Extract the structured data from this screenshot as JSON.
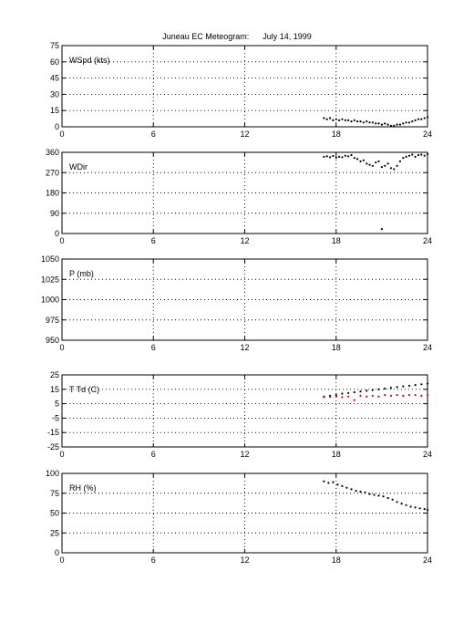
{
  "title": "Juneau EC Meteogram:      July 14, 1999",
  "chart_data": [
    {
      "type": "scatter",
      "ylabel": "WSpd (kts)",
      "xlim": [
        0,
        24
      ],
      "ylim": [
        0,
        75
      ],
      "xticks": [
        0,
        6,
        12,
        18,
        24
      ],
      "yticks": [
        0,
        15,
        30,
        45,
        60,
        75
      ],
      "series": [
        {
          "color": "#000000",
          "x": [
            17.2,
            17.4,
            17.6,
            17.8,
            18.0,
            18.2,
            18.4,
            18.6,
            18.8,
            19.0,
            19.2,
            19.4,
            19.6,
            19.8,
            20.0,
            20.2,
            20.4,
            20.6,
            20.8,
            21.0,
            21.2,
            21.4,
            21.6,
            21.8,
            22.0,
            22.2,
            22.4,
            22.6,
            22.8,
            23.0,
            23.2,
            23.4,
            23.6,
            23.8,
            24.0
          ],
          "y": [
            8,
            7,
            8,
            6,
            7,
            6,
            7,
            6,
            6,
            5,
            6,
            5,
            5,
            4,
            5,
            4,
            4,
            3,
            3,
            2,
            3,
            2,
            1,
            1,
            2,
            2,
            3,
            4,
            4,
            5,
            6,
            7,
            7,
            8,
            9
          ]
        }
      ]
    },
    {
      "type": "scatter",
      "ylabel": "WDir",
      "xlim": [
        0,
        24
      ],
      "ylim": [
        0,
        360
      ],
      "xticks": [
        0,
        6,
        12,
        18,
        24
      ],
      "yticks": [
        0,
        90,
        180,
        270,
        360
      ],
      "series": [
        {
          "color": "#000000",
          "x": [
            17.2,
            17.4,
            17.6,
            17.8,
            18.0,
            18.2,
            18.4,
            18.6,
            18.8,
            19.0,
            19.2,
            19.4,
            19.6,
            19.8,
            20.0,
            20.2,
            20.4,
            20.6,
            20.8,
            21.0,
            21.2,
            21.4,
            21.6,
            21.8,
            22.0,
            22.2,
            22.4,
            22.6,
            22.8,
            23.0,
            23.2,
            23.4,
            23.6,
            23.8,
            24.0,
            21.0
          ],
          "y": [
            340,
            342,
            338,
            344,
            336,
            340,
            338,
            345,
            342,
            348,
            335,
            330,
            320,
            325,
            310,
            305,
            300,
            315,
            320,
            295,
            300,
            310,
            290,
            285,
            300,
            320,
            335,
            340,
            345,
            350,
            340,
            348,
            350,
            345,
            352,
            20
          ]
        }
      ]
    },
    {
      "type": "scatter",
      "ylabel": "P (mb)",
      "xlim": [
        0,
        24
      ],
      "ylim": [
        950,
        1050
      ],
      "xticks": [
        0,
        6,
        12,
        18,
        24
      ],
      "yticks": [
        950,
        975,
        1000,
        1025,
        1050
      ],
      "series": []
    },
    {
      "type": "scatter",
      "ylabel": "T Td (C)",
      "xlim": [
        0,
        24
      ],
      "ylim": [
        -25,
        25
      ],
      "xticks": [
        0,
        6,
        12,
        18,
        24
      ],
      "yticks": [
        -25,
        -15,
        -5,
        5,
        15,
        25
      ],
      "series": [
        {
          "color": "#000000",
          "x": [
            17.2,
            17.6,
            18.0,
            18.4,
            18.8,
            19.2,
            19.6,
            20.0,
            20.4,
            20.8,
            21.2,
            21.6,
            22.0,
            22.4,
            22.8,
            23.2,
            23.6,
            24.0
          ],
          "y": [
            10,
            10.5,
            11,
            12,
            12.5,
            13,
            13.5,
            14,
            14.5,
            15,
            15.5,
            16,
            16.5,
            17,
            17.5,
            18,
            18.5,
            19
          ]
        },
        {
          "color": "#dd0000",
          "x": [
            17.2,
            17.6,
            18.0,
            18.4,
            18.8,
            19.2,
            19.6,
            20.0,
            20.4,
            20.8,
            21.2,
            21.6,
            22.0,
            22.4,
            22.8,
            23.2,
            23.6,
            24.0
          ],
          "y": [
            9.5,
            9.8,
            10,
            9.5,
            10,
            7.5,
            10.5,
            10,
            10.5,
            10,
            11,
            10.5,
            11,
            10.5,
            11,
            11,
            10.5,
            11
          ]
        }
      ]
    },
    {
      "type": "scatter",
      "ylabel": "RH (%)",
      "xlim": [
        0,
        24
      ],
      "ylim": [
        0,
        100
      ],
      "xticks": [
        0,
        6,
        12,
        18,
        24
      ],
      "yticks": [
        0,
        25,
        50,
        75,
        100
      ],
      "series": [
        {
          "color": "#000000",
          "x": [
            17.2,
            17.5,
            17.8,
            18.1,
            18.4,
            18.7,
            19.0,
            19.3,
            19.6,
            19.9,
            20.2,
            20.5,
            20.8,
            21.1,
            21.4,
            21.7,
            22.0,
            22.3,
            22.6,
            22.9,
            23.2,
            23.5,
            23.8,
            24.0
          ],
          "y": [
            90,
            88,
            89,
            86,
            84,
            82,
            80,
            78,
            77,
            76,
            74,
            73,
            72,
            71,
            69,
            67,
            64,
            62,
            60,
            58,
            57,
            56,
            55,
            54
          ]
        }
      ]
    }
  ]
}
